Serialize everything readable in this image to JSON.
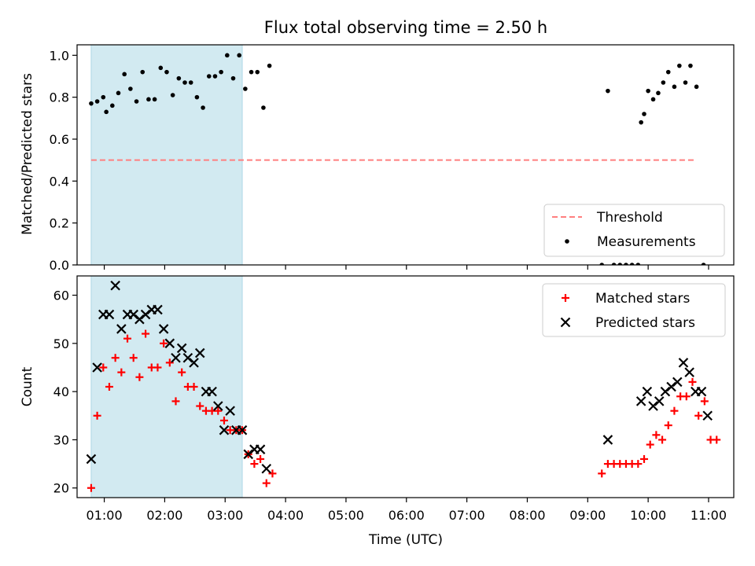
{
  "figure": {
    "title": "Flux total observing time = 2.50 h",
    "colors": {
      "shaded_window": "#add8e6",
      "threshold": "#ff7f7f",
      "measurements": "#000000",
      "matched": "#ff0000",
      "predicted": "#000000"
    }
  },
  "chart_data": [
    {
      "type": "scatter",
      "title": "Flux total observing time = 2.50 h",
      "xlabel": "",
      "ylabel": "Matched/Predicted stars",
      "xlim": [
        "00:33",
        "11:25"
      ],
      "ylim": [
        0,
        1.05
      ],
      "yticks": [
        0.0,
        0.2,
        0.4,
        0.6,
        0.8,
        1.0
      ],
      "ytick_labels": [
        "0.0",
        "0.2",
        "0.4",
        "0.6",
        "0.8",
        "1.0"
      ],
      "shaded_span": [
        "00:47",
        "03:17"
      ],
      "legend_placement": "lower-right",
      "threshold": {
        "name": "Threshold",
        "style": "dashed",
        "x": [
          "00:47",
          "10:47"
        ],
        "y": 0.5
      },
      "series": [
        {
          "name": "Measurements",
          "marker": "dot",
          "points": [
            [
              "00:47",
              0.77
            ],
            [
              "00:53",
              0.78
            ],
            [
              "00:59",
              0.8
            ],
            [
              "01:02",
              0.73
            ],
            [
              "01:08",
              0.76
            ],
            [
              "01:14",
              0.82
            ],
            [
              "01:20",
              0.91
            ],
            [
              "01:26",
              0.84
            ],
            [
              "01:32",
              0.78
            ],
            [
              "01:38",
              0.92
            ],
            [
              "01:44",
              0.79
            ],
            [
              "01:50",
              0.79
            ],
            [
              "01:56",
              0.94
            ],
            [
              "02:02",
              0.92
            ],
            [
              "02:08",
              0.81
            ],
            [
              "02:14",
              0.89
            ],
            [
              "02:20",
              0.87
            ],
            [
              "02:26",
              0.87
            ],
            [
              "02:32",
              0.8
            ],
            [
              "02:38",
              0.75
            ],
            [
              "02:44",
              0.9
            ],
            [
              "02:50",
              0.9
            ],
            [
              "02:56",
              0.92
            ],
            [
              "03:02",
              1.0
            ],
            [
              "03:08",
              0.89
            ],
            [
              "03:14",
              1.0
            ],
            [
              "03:20",
              0.84
            ],
            [
              "03:26",
              0.92
            ],
            [
              "03:32",
              0.92
            ],
            [
              "03:38",
              0.75
            ],
            [
              "03:44",
              0.95
            ],
            [
              "09:14",
              0.0
            ],
            [
              "09:20",
              0.83
            ],
            [
              "09:26",
              0.0
            ],
            [
              "09:32",
              0.0
            ],
            [
              "09:38",
              0.0
            ],
            [
              "09:44",
              0.0
            ],
            [
              "09:50",
              0.0
            ],
            [
              "09:53",
              0.68
            ],
            [
              "09:56",
              0.72
            ],
            [
              "10:00",
              0.83
            ],
            [
              "10:05",
              0.79
            ],
            [
              "10:10",
              0.82
            ],
            [
              "10:15",
              0.87
            ],
            [
              "10:20",
              0.92
            ],
            [
              "10:26",
              0.85
            ],
            [
              "10:31",
              0.95
            ],
            [
              "10:37",
              0.87
            ],
            [
              "10:42",
              0.95
            ],
            [
              "10:48",
              0.85
            ],
            [
              "10:55",
              0.0
            ]
          ]
        }
      ]
    },
    {
      "type": "scatter",
      "title": "",
      "xlabel": "Time (UTC)",
      "ylabel": "Count",
      "xlim": [
        "00:33",
        "11:25"
      ],
      "ylim": [
        18,
        64
      ],
      "yticks": [
        20,
        30,
        40,
        50,
        60
      ],
      "ytick_labels": [
        "20",
        "30",
        "40",
        "50",
        "60"
      ],
      "xticks": [
        "01:00",
        "02:00",
        "03:00",
        "04:00",
        "05:00",
        "06:00",
        "07:00",
        "08:00",
        "09:00",
        "10:00",
        "11:00"
      ],
      "xtick_labels": [
        "01:00",
        "02:00",
        "03:00",
        "04:00",
        "05:00",
        "06:00",
        "07:00",
        "08:00",
        "09:00",
        "10:00",
        "11:00"
      ],
      "shaded_span": [
        "00:47",
        "03:17"
      ],
      "legend_placement": "upper-right",
      "series": [
        {
          "name": "Matched stars",
          "marker": "plus",
          "points": [
            [
              "00:47",
              20
            ],
            [
              "00:53",
              35
            ],
            [
              "00:59",
              45
            ],
            [
              "01:05",
              41
            ],
            [
              "01:11",
              47
            ],
            [
              "01:17",
              44
            ],
            [
              "01:23",
              51
            ],
            [
              "01:29",
              47
            ],
            [
              "01:35",
              43
            ],
            [
              "01:41",
              52
            ],
            [
              "01:47",
              45
            ],
            [
              "01:53",
              45
            ],
            [
              "01:59",
              50
            ],
            [
              "02:05",
              46
            ],
            [
              "02:11",
              38
            ],
            [
              "02:17",
              44
            ],
            [
              "02:23",
              41
            ],
            [
              "02:29",
              41
            ],
            [
              "02:35",
              37
            ],
            [
              "02:41",
              36
            ],
            [
              "02:47",
              36
            ],
            [
              "02:53",
              36
            ],
            [
              "02:59",
              34
            ],
            [
              "03:05",
              32
            ],
            [
              "03:11",
              32
            ],
            [
              "03:17",
              32
            ],
            [
              "03:23",
              27
            ],
            [
              "03:29",
              25
            ],
            [
              "03:35",
              26
            ],
            [
              "03:41",
              21
            ],
            [
              "03:47",
              23
            ],
            [
              "09:14",
              23
            ],
            [
              "09:20",
              25
            ],
            [
              "09:26",
              25
            ],
            [
              "09:32",
              25
            ],
            [
              "09:38",
              25
            ],
            [
              "09:44",
              25
            ],
            [
              "09:50",
              25
            ],
            [
              "09:56",
              26
            ],
            [
              "10:02",
              29
            ],
            [
              "10:08",
              31
            ],
            [
              "10:14",
              30
            ],
            [
              "10:20",
              33
            ],
            [
              "10:26",
              36
            ],
            [
              "10:32",
              39
            ],
            [
              "10:38",
              39
            ],
            [
              "10:44",
              42
            ],
            [
              "10:50",
              35
            ],
            [
              "10:56",
              38
            ],
            [
              "11:02",
              30
            ],
            [
              "11:08",
              30
            ]
          ]
        },
        {
          "name": "Predicted stars",
          "marker": "x",
          "points": [
            [
              "00:47",
              26
            ],
            [
              "00:53",
              45
            ],
            [
              "00:59",
              56
            ],
            [
              "01:05",
              56
            ],
            [
              "01:11",
              62
            ],
            [
              "01:17",
              53
            ],
            [
              "01:23",
              56
            ],
            [
              "01:29",
              56
            ],
            [
              "01:35",
              55
            ],
            [
              "01:41",
              56
            ],
            [
              "01:47",
              57
            ],
            [
              "01:53",
              57
            ],
            [
              "01:59",
              53
            ],
            [
              "02:05",
              50
            ],
            [
              "02:11",
              47
            ],
            [
              "02:17",
              49
            ],
            [
              "02:23",
              47
            ],
            [
              "02:29",
              46
            ],
            [
              "02:35",
              48
            ],
            [
              "02:41",
              40
            ],
            [
              "02:47",
              40
            ],
            [
              "02:53",
              37
            ],
            [
              "02:59",
              32
            ],
            [
              "03:05",
              36
            ],
            [
              "03:11",
              32
            ],
            [
              "03:17",
              32
            ],
            [
              "03:23",
              27
            ],
            [
              "03:29",
              28
            ],
            [
              "03:35",
              28
            ],
            [
              "03:41",
              24
            ],
            [
              "09:20",
              30
            ],
            [
              "09:53",
              38
            ],
            [
              "09:59",
              40
            ],
            [
              "10:05",
              37
            ],
            [
              "10:11",
              38
            ],
            [
              "10:17",
              40
            ],
            [
              "10:23",
              41
            ],
            [
              "10:29",
              42
            ],
            [
              "10:35",
              46
            ],
            [
              "10:41",
              44
            ],
            [
              "10:47",
              40
            ],
            [
              "10:53",
              40
            ],
            [
              "10:59",
              35
            ]
          ]
        }
      ]
    }
  ]
}
